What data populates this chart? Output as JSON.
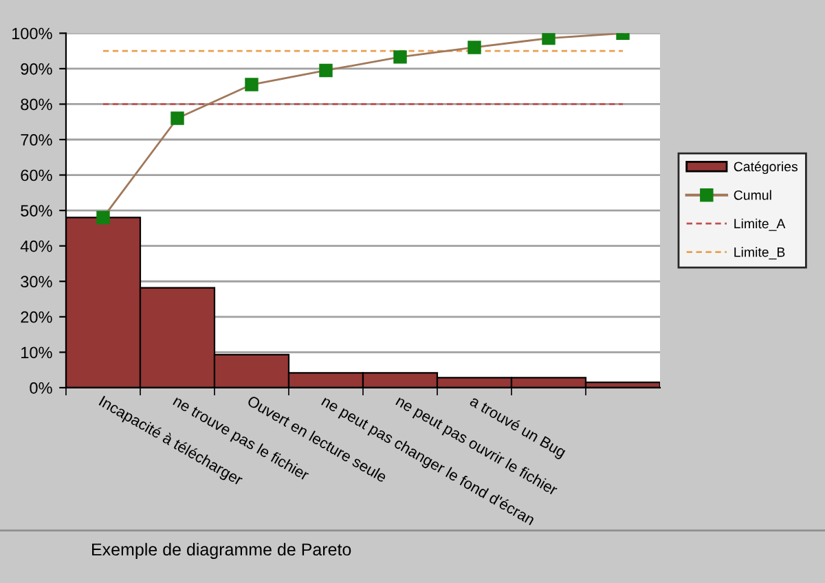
{
  "chart_data": {
    "type": "bar",
    "categories": [
      "Incapacité à télécharger",
      "ne trouve pas le fichier",
      "Ouvert en lecture seule",
      "ne peut pas changer le fond d'écran",
      "ne peut pas ouvrir le fichier",
      "a trouvé un Bug",
      null,
      null
    ],
    "series": [
      {
        "name": "Catégories",
        "color": "#953735",
        "values": [
          48,
          28.2,
          9.3,
          4.2,
          4.2,
          2.8,
          2.8,
          1.5
        ]
      },
      {
        "name": "Cumul",
        "type": "line",
        "color": "#a0785a",
        "marker": "square",
        "values": [
          48,
          76,
          85.5,
          89.5,
          93.3,
          96,
          98.6,
          100
        ]
      }
    ],
    "ref_lines": [
      {
        "axis": "y",
        "value": 80,
        "label": "Limite_A",
        "color": "#c0504d",
        "line_style": "dashed"
      },
      {
        "axis": "y",
        "value": 95,
        "label": "Limite_B",
        "color": "#e9a050",
        "line_style": "dashed"
      }
    ],
    "ylim": [
      0,
      100
    ],
    "yticks": [
      {
        "value": 0,
        "label": "0%"
      },
      {
        "value": 10,
        "label": "10%"
      },
      {
        "value": 20,
        "label": "20%"
      },
      {
        "value": 30,
        "label": "30%"
      },
      {
        "value": 40,
        "label": "40%"
      },
      {
        "value": 50,
        "label": "50%"
      },
      {
        "value": 60,
        "label": "60%"
      },
      {
        "value": 70,
        "label": "70%"
      },
      {
        "value": 80,
        "label": "80%"
      },
      {
        "value": 90,
        "label": "90%"
      },
      {
        "value": 100,
        "label": "100%"
      }
    ],
    "grid": "y",
    "legend": "right",
    "annotations": [
      "Exemple de diagramme de Pareto"
    ]
  }
}
